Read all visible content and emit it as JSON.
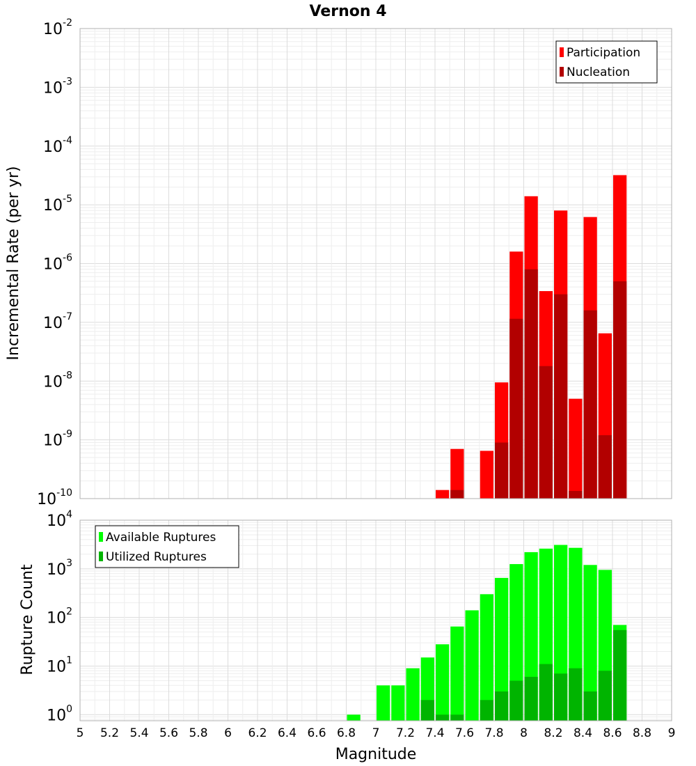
{
  "chart_data": {
    "title": "Vernon 4",
    "shared_x_axis": {
      "label": "Magnitude",
      "range": [
        5,
        9
      ],
      "ticks": [
        "5",
        "5.2",
        "5.4",
        "5.6",
        "5.8",
        "6",
        "6.2",
        "6.4",
        "6.6",
        "6.8",
        "7",
        "7.2",
        "7.4",
        "7.6",
        "7.8",
        "8",
        "8.2",
        "8.4",
        "8.6",
        "8.8",
        "9"
      ],
      "bin_width": 0.1
    },
    "panels": [
      {
        "type": "bar",
        "ylabel": "Incremental Rate (per yr)",
        "yscale": "log",
        "ylim": [
          1e-10,
          0.01
        ],
        "ytick_exponents": [
          -10,
          -9,
          -8,
          -7,
          -6,
          -5,
          -4,
          -3,
          -2
        ],
        "legend_position": "top-right",
        "grid": true,
        "series": [
          {
            "name": "Participation",
            "color": "#ff0000",
            "points": [
              [
                7.45,
                1.4e-10
              ],
              [
                7.55,
                7e-10
              ],
              [
                7.75,
                6.5e-10
              ],
              [
                7.85,
                9.5e-09
              ],
              [
                7.95,
                1.6e-06
              ],
              [
                8.05,
                1.4e-05
              ],
              [
                8.15,
                3.4e-07
              ],
              [
                8.25,
                8e-06
              ],
              [
                8.35,
                5e-09
              ],
              [
                8.45,
                6.2e-06
              ],
              [
                8.55,
                6.5e-08
              ],
              [
                8.65,
                3.2e-05
              ]
            ]
          },
          {
            "name": "Nucleation",
            "color": "#b20000",
            "points": [
              [
                7.55,
                1.4e-10
              ],
              [
                7.85,
                9e-10
              ],
              [
                7.95,
                1.15e-07
              ],
              [
                8.05,
                8e-07
              ],
              [
                8.15,
                1.8e-08
              ],
              [
                8.25,
                3e-07
              ],
              [
                8.35,
                1.35e-10
              ],
              [
                8.45,
                1.6e-07
              ],
              [
                8.55,
                1.2e-09
              ],
              [
                8.65,
                5e-07
              ]
            ]
          }
        ]
      },
      {
        "type": "bar",
        "ylabel": "Rupture Count",
        "yscale": "log",
        "ylim": [
          0.75,
          10000
        ],
        "ytick_exponents": [
          0,
          1,
          2,
          3,
          4
        ],
        "legend_position": "top-left",
        "grid": true,
        "series": [
          {
            "name": "Available Ruptures",
            "color": "#00ff00",
            "points": [
              [
                6.85,
                1
              ],
              [
                7.05,
                4
              ],
              [
                7.15,
                4
              ],
              [
                7.25,
                9
              ],
              [
                7.35,
                15
              ],
              [
                7.45,
                28
              ],
              [
                7.55,
                65
              ],
              [
                7.65,
                140
              ],
              [
                7.75,
                300
              ],
              [
                7.85,
                650
              ],
              [
                7.95,
                1250
              ],
              [
                8.05,
                2200
              ],
              [
                8.15,
                2600
              ],
              [
                8.25,
                3100
              ],
              [
                8.35,
                2700
              ],
              [
                8.45,
                1200
              ],
              [
                8.55,
                950
              ],
              [
                8.65,
                70
              ]
            ]
          },
          {
            "name": "Utilized Ruptures",
            "color": "#00b400",
            "points": [
              [
                7.35,
                2
              ],
              [
                7.45,
                1
              ],
              [
                7.55,
                1
              ],
              [
                7.75,
                2
              ],
              [
                7.85,
                3
              ],
              [
                7.95,
                5
              ],
              [
                8.05,
                6
              ],
              [
                8.15,
                11
              ],
              [
                8.25,
                7
              ],
              [
                8.35,
                9
              ],
              [
                8.45,
                3
              ],
              [
                8.55,
                8
              ],
              [
                8.65,
                55
              ]
            ]
          }
        ]
      }
    ]
  }
}
